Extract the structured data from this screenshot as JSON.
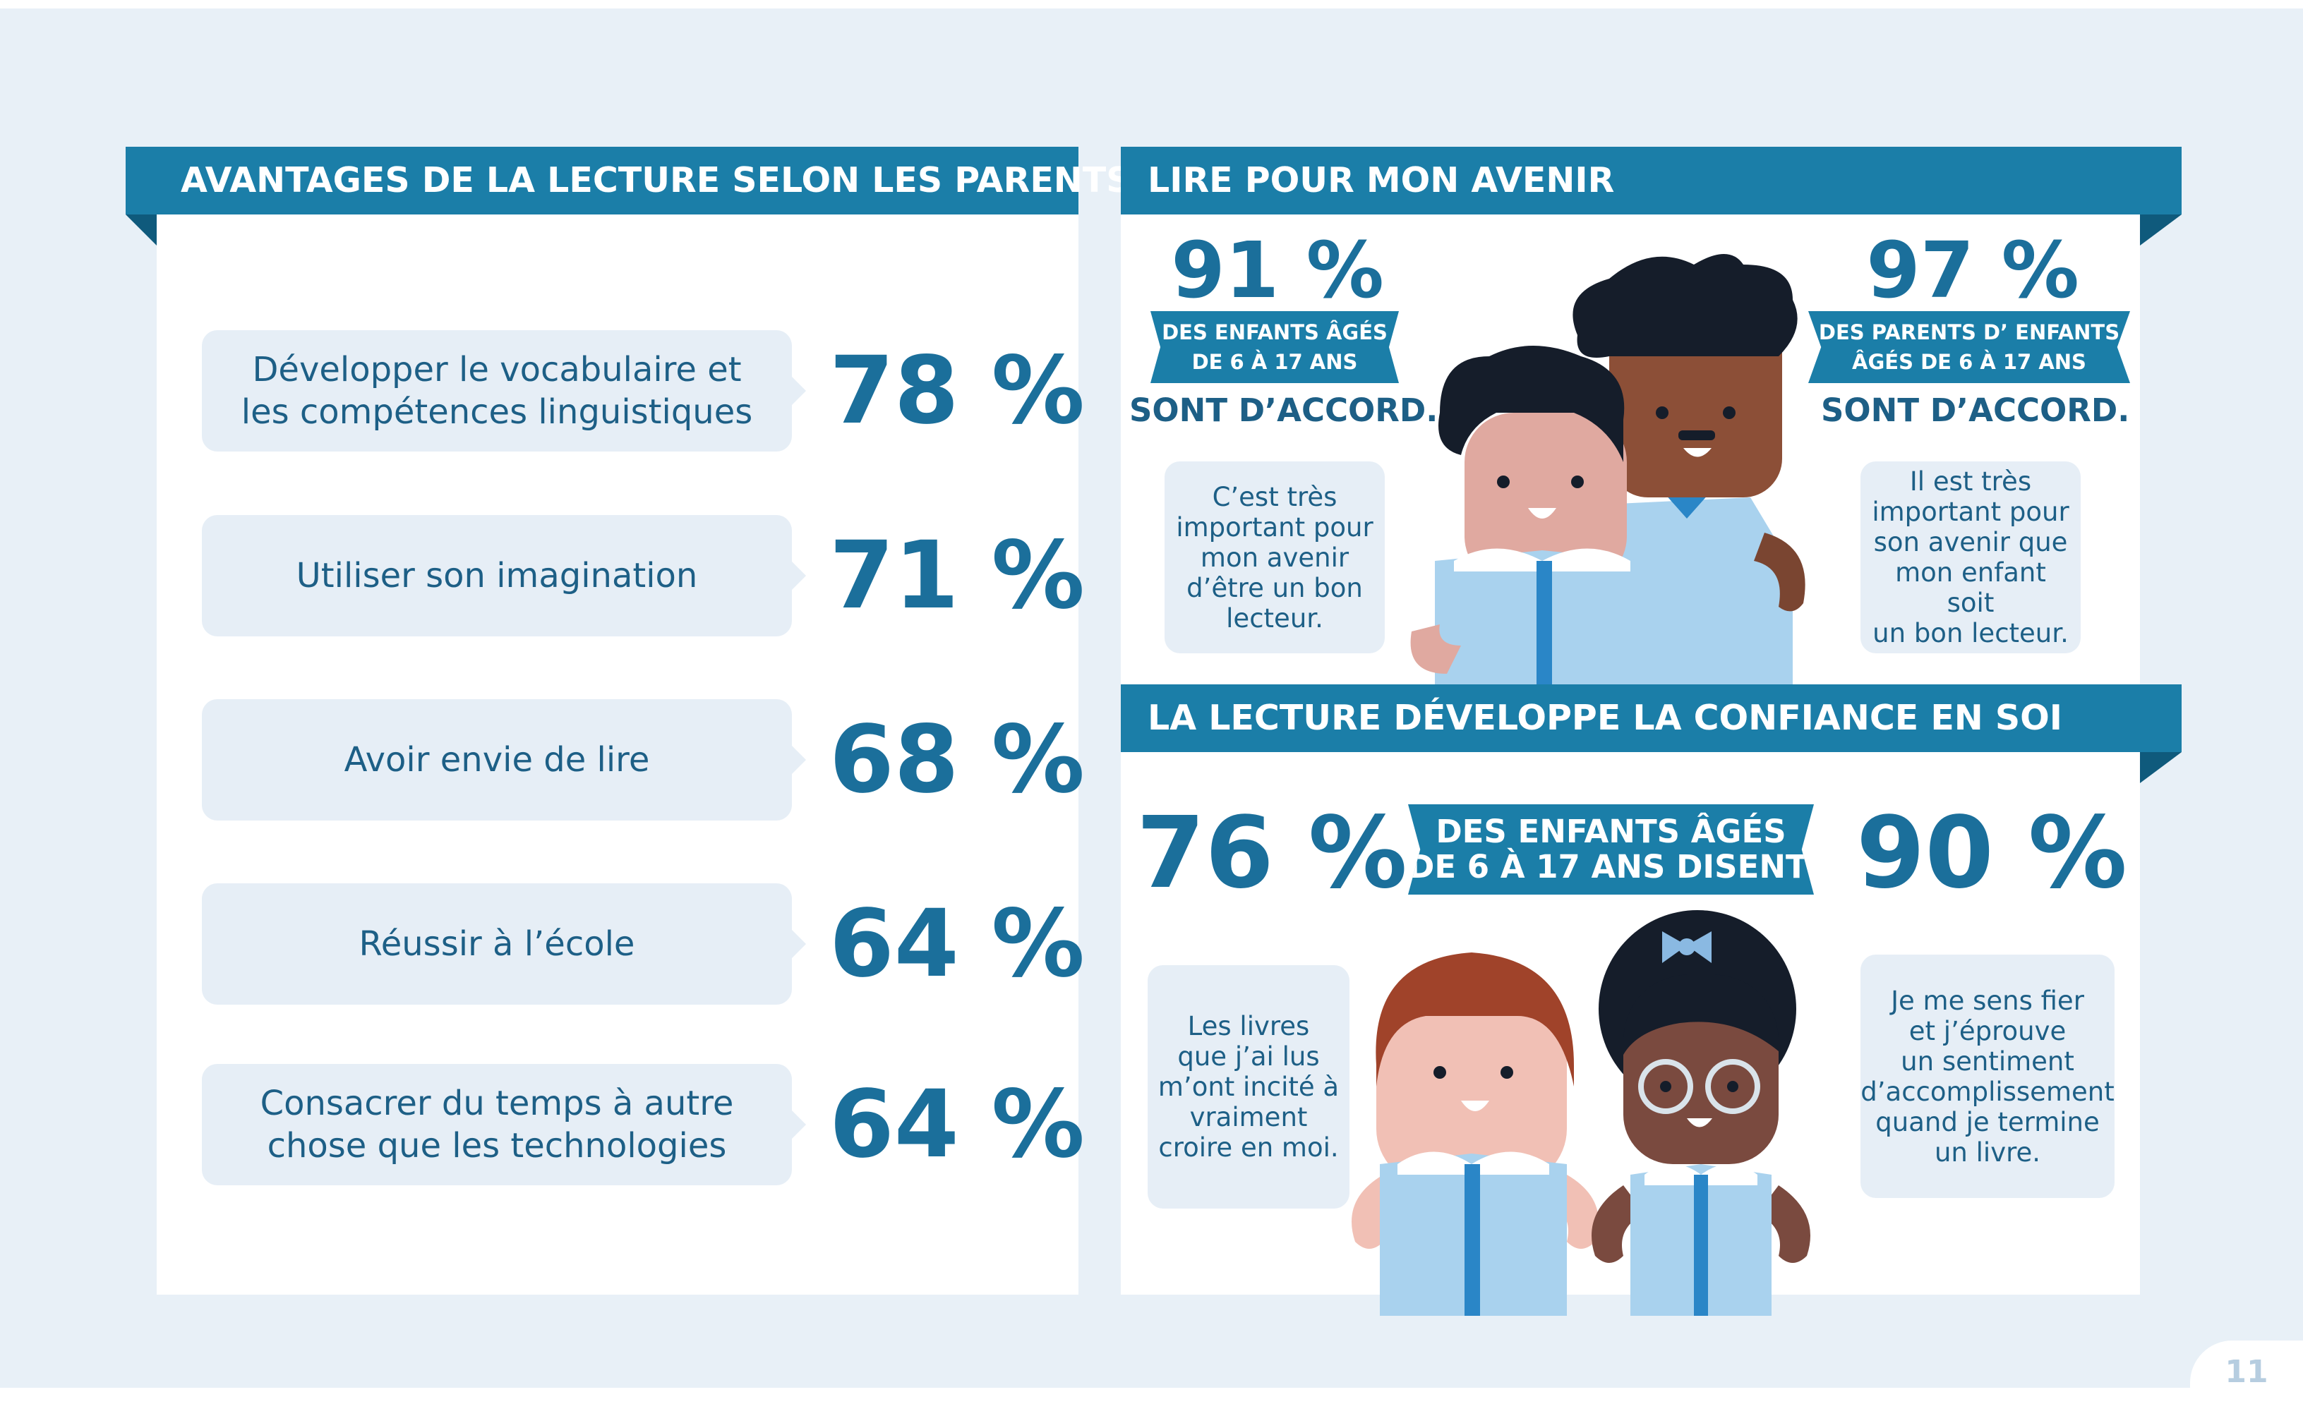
{
  "left_panel": {
    "title": "AVANTAGES DE LA LECTURE SELON LES PARENTS",
    "rows": [
      {
        "label": "Développer le vocabulaire et les compétences linguistiques",
        "percent": "78 %"
      },
      {
        "label": "Utiliser son imagination",
        "percent": "71 %"
      },
      {
        "label": "Avoir envie de lire",
        "percent": "68 %"
      },
      {
        "label": "Réussir à l’école",
        "percent": "64 %"
      },
      {
        "label": "Consacrer du temps à autre chose que les technologies",
        "percent": "64 %"
      }
    ]
  },
  "future_panel": {
    "title": "LIRE POUR MON AVENIR",
    "children_stat": {
      "percent": "91 %",
      "tag_line1": "DES ENFANTS ÂGÉS",
      "tag_line2": "DE 6 À 17 ANS",
      "agree": "SONT D’ACCORD."
    },
    "parents_stat": {
      "percent": "97 %",
      "tag_line1": "DES PARENTS D’ ENFANTS",
      "tag_line2": "ÂGÉS DE 6 À 17 ANS",
      "agree": "SONT D’ACCORD."
    },
    "child_quote": [
      "C’est très",
      "important pour",
      "mon avenir",
      "d’être un bon",
      "lecteur."
    ],
    "parent_quote": [
      "Il est très",
      "important pour",
      "son avenir que",
      "mon enfant soit",
      "un bon lecteur."
    ]
  },
  "confidence_panel": {
    "title": "LA LECTURE DÉVELOPPE LA CONFIANCE EN SOI",
    "left_percent": "76 %",
    "right_percent": "90 %",
    "tag_line1": "DES ENFANTS ÂGÉS",
    "tag_line2": "DE 6 À 17 ANS DISENT :",
    "left_quote": [
      "Les livres",
      "que j’ai lus",
      "m’ont incité à",
      "vraiment",
      "croire en moi."
    ],
    "right_quote": [
      "Je me sens fier",
      "et j’éprouve",
      "un sentiment",
      "d’accomplissement",
      "quand je termine",
      "un livre."
    ]
  },
  "page_number": "11",
  "colors": {
    "banner": "#1b7ea8",
    "percent_text": "#1b6f9b",
    "bubble": "#e6eef6",
    "body_text": "#1d5f86",
    "page_bg": "#e8f0f7"
  }
}
